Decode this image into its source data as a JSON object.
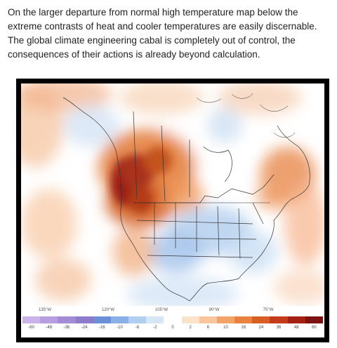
{
  "caption": "On the larger departure from normal high temperature map below the extreme contrasts of heat and cooler temperatures are easily discernable. The global climate engineering cabal is completely out of control, the consequences of their actions is already beyond calculation.",
  "longitudes": [
    "135°W",
    "120°W",
    "105°W",
    "90°W",
    "75°W"
  ],
  "colorbar": {
    "ticks": [
      "-60",
      "-48",
      "-36",
      "-24",
      "-16",
      "-10",
      "-6",
      "-2",
      "0",
      "2",
      "6",
      "10",
      "16",
      "24",
      "36",
      "48",
      "60"
    ],
    "colors": [
      "#c9b3e8",
      "#b79ee0",
      "#a48bd6",
      "#8f7bcc",
      "#6c8fd9",
      "#8ab1e6",
      "#b1cdef",
      "#d6e6f7",
      "#ffffff",
      "#fde2cc",
      "#f8c59c",
      "#f2a36a",
      "#e9823e",
      "#d85f24",
      "#c53a1a",
      "#a52014",
      "#7c1212"
    ]
  },
  "anomaly_regions": [
    {
      "name": "pacific-northwest-extreme-heat",
      "color": "#8a1414"
    },
    {
      "name": "western-canada-heat",
      "color": "#c9541e"
    },
    {
      "name": "central-us-cool",
      "color": "#b9d3f0"
    },
    {
      "name": "northeast-canada-warm",
      "color": "#e88a4a"
    }
  ]
}
